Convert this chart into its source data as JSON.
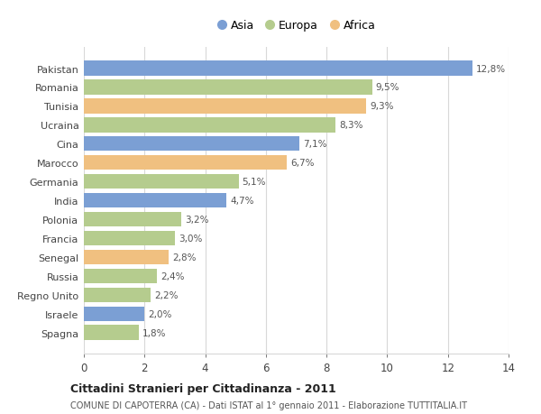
{
  "countries": [
    "Pakistan",
    "Romania",
    "Tunisia",
    "Ucraina",
    "Cina",
    "Marocco",
    "Germania",
    "India",
    "Polonia",
    "Francia",
    "Senegal",
    "Russia",
    "Regno Unito",
    "Israele",
    "Spagna"
  ],
  "values": [
    12.8,
    9.5,
    9.3,
    8.3,
    7.1,
    6.7,
    5.1,
    4.7,
    3.2,
    3.0,
    2.8,
    2.4,
    2.2,
    2.0,
    1.8
  ],
  "labels": [
    "12,8%",
    "9,5%",
    "9,3%",
    "8,3%",
    "7,1%",
    "6,7%",
    "5,1%",
    "4,7%",
    "3,2%",
    "3,0%",
    "2,8%",
    "2,4%",
    "2,2%",
    "2,0%",
    "1,8%"
  ],
  "categories": [
    "Asia",
    "Europa",
    "Africa",
    "Europa",
    "Asia",
    "Africa",
    "Europa",
    "Asia",
    "Europa",
    "Europa",
    "Africa",
    "Europa",
    "Europa",
    "Asia",
    "Europa"
  ],
  "colors": {
    "Asia": "#7b9fd4",
    "Europa": "#b5cc8e",
    "Africa": "#f0c080"
  },
  "title": "Cittadini Stranieri per Cittadinanza - 2011",
  "subtitle": "COMUNE DI CAPOTERRA (CA) - Dati ISTAT al 1° gennaio 2011 - Elaborazione TUTTITALIA.IT",
  "xlim": [
    0,
    14
  ],
  "xticks": [
    0,
    2,
    4,
    6,
    8,
    10,
    12,
    14
  ],
  "background_color": "#ffffff",
  "grid_color": "#d8d8d8",
  "bar_height": 0.78
}
